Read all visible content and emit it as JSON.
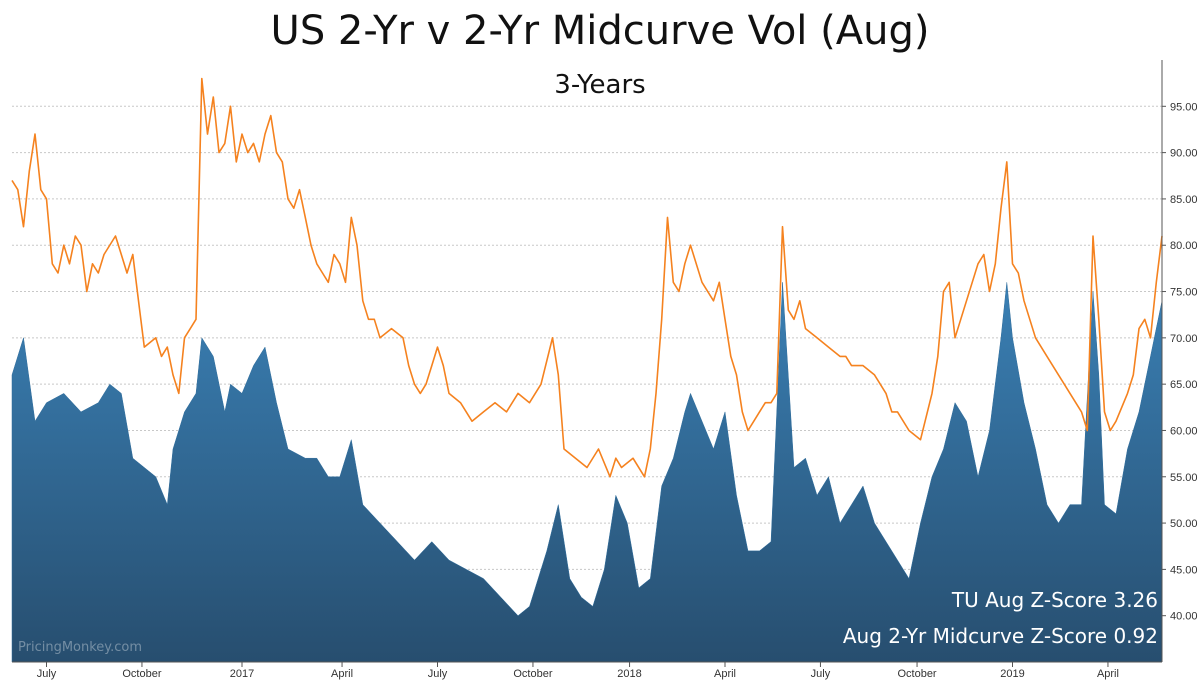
{
  "chart_data": {
    "type": "area",
    "title": "US 2-Yr v 2-Yr Midcurve Vol (Aug)",
    "subtitle": "3-Years",
    "x_tick_labels": [
      "July",
      "October",
      "2017",
      "April",
      "July",
      "October",
      "2018",
      "April",
      "July",
      "October",
      "2019",
      "April"
    ],
    "y_tick_labels": [
      "40.00",
      "45.00",
      "50.00",
      "55.00",
      "60.00",
      "65.00",
      "70.00",
      "75.00",
      "80.00",
      "85.00",
      "90.00",
      "95.00"
    ],
    "ylim": [
      35,
      100
    ],
    "grid": true,
    "y_axis_side": "right",
    "x_ticks_t": [
      0.03,
      0.113,
      0.2,
      0.287,
      0.37,
      0.453,
      0.537,
      0.62,
      0.703,
      0.787,
      0.87,
      0.953
    ],
    "series": [
      {
        "kind": "area",
        "color": "#2f6d9c",
        "points": [
          [
            0,
            66
          ],
          [
            0.01,
            70
          ],
          [
            0.02,
            61
          ],
          [
            0.03,
            63
          ],
          [
            0.045,
            64
          ],
          [
            0.06,
            62
          ],
          [
            0.075,
            63
          ],
          [
            0.085,
            65
          ],
          [
            0.095,
            64
          ],
          [
            0.105,
            57
          ],
          [
            0.115,
            56
          ],
          [
            0.125,
            55
          ],
          [
            0.135,
            52
          ],
          [
            0.14,
            58
          ],
          [
            0.15,
            62
          ],
          [
            0.16,
            64
          ],
          [
            0.165,
            70
          ],
          [
            0.175,
            68
          ],
          [
            0.185,
            62
          ],
          [
            0.19,
            65
          ],
          [
            0.2,
            64
          ],
          [
            0.21,
            67
          ],
          [
            0.22,
            69
          ],
          [
            0.23,
            63
          ],
          [
            0.24,
            58
          ],
          [
            0.255,
            57
          ],
          [
            0.265,
            57
          ],
          [
            0.275,
            55
          ],
          [
            0.285,
            55
          ],
          [
            0.295,
            59
          ],
          [
            0.305,
            52
          ],
          [
            0.32,
            50
          ],
          [
            0.335,
            48
          ],
          [
            0.35,
            46
          ],
          [
            0.365,
            48
          ],
          [
            0.38,
            46
          ],
          [
            0.395,
            45
          ],
          [
            0.41,
            44
          ],
          [
            0.425,
            42
          ],
          [
            0.44,
            40
          ],
          [
            0.45,
            41
          ],
          [
            0.465,
            47
          ],
          [
            0.475,
            52
          ],
          [
            0.485,
            44
          ],
          [
            0.495,
            42
          ],
          [
            0.505,
            41
          ],
          [
            0.515,
            45
          ],
          [
            0.525,
            53
          ],
          [
            0.535,
            50
          ],
          [
            0.545,
            43
          ],
          [
            0.555,
            44
          ],
          [
            0.565,
            54
          ],
          [
            0.575,
            57
          ],
          [
            0.585,
            62
          ],
          [
            0.59,
            64
          ],
          [
            0.6,
            61
          ],
          [
            0.61,
            58
          ],
          [
            0.62,
            62
          ],
          [
            0.63,
            53
          ],
          [
            0.64,
            47
          ],
          [
            0.65,
            47
          ],
          [
            0.66,
            48
          ],
          [
            0.67,
            76
          ],
          [
            0.68,
            56
          ],
          [
            0.69,
            57
          ],
          [
            0.7,
            53
          ],
          [
            0.71,
            55
          ],
          [
            0.72,
            50
          ],
          [
            0.73,
            52
          ],
          [
            0.74,
            54
          ],
          [
            0.75,
            50
          ],
          [
            0.76,
            48
          ],
          [
            0.77,
            46
          ],
          [
            0.78,
            44
          ],
          [
            0.79,
            50
          ],
          [
            0.8,
            55
          ],
          [
            0.81,
            58
          ],
          [
            0.82,
            63
          ],
          [
            0.83,
            61
          ],
          [
            0.84,
            55
          ],
          [
            0.85,
            60
          ],
          [
            0.86,
            70
          ],
          [
            0.865,
            76
          ],
          [
            0.87,
            70
          ],
          [
            0.88,
            63
          ],
          [
            0.89,
            58
          ],
          [
            0.9,
            52
          ],
          [
            0.91,
            50
          ],
          [
            0.92,
            52
          ],
          [
            0.93,
            52
          ],
          [
            0.94,
            75
          ],
          [
            0.945,
            66
          ],
          [
            0.95,
            52
          ],
          [
            0.96,
            51
          ],
          [
            0.97,
            58
          ],
          [
            0.98,
            62
          ],
          [
            0.99,
            68
          ],
          [
            1.0,
            74
          ]
        ]
      },
      {
        "kind": "line",
        "color": "#f5821f",
        "points": [
          [
            0,
            87
          ],
          [
            0.005,
            86
          ],
          [
            0.01,
            82
          ],
          [
            0.015,
            88
          ],
          [
            0.02,
            92
          ],
          [
            0.025,
            86
          ],
          [
            0.03,
            85
          ],
          [
            0.035,
            78
          ],
          [
            0.04,
            77
          ],
          [
            0.045,
            80
          ],
          [
            0.05,
            78
          ],
          [
            0.055,
            81
          ],
          [
            0.06,
            80
          ],
          [
            0.065,
            75
          ],
          [
            0.07,
            78
          ],
          [
            0.075,
            77
          ],
          [
            0.08,
            79
          ],
          [
            0.09,
            81
          ],
          [
            0.095,
            79
          ],
          [
            0.1,
            77
          ],
          [
            0.105,
            79
          ],
          [
            0.11,
            74
          ],
          [
            0.115,
            69
          ],
          [
            0.125,
            70
          ],
          [
            0.13,
            68
          ],
          [
            0.135,
            69
          ],
          [
            0.14,
            66
          ],
          [
            0.145,
            64
          ],
          [
            0.15,
            70
          ],
          [
            0.155,
            71
          ],
          [
            0.16,
            72
          ],
          [
            0.165,
            98
          ],
          [
            0.17,
            92
          ],
          [
            0.175,
            96
          ],
          [
            0.18,
            90
          ],
          [
            0.185,
            91
          ],
          [
            0.19,
            95
          ],
          [
            0.195,
            89
          ],
          [
            0.2,
            92
          ],
          [
            0.205,
            90
          ],
          [
            0.21,
            91
          ],
          [
            0.215,
            89
          ],
          [
            0.22,
            92
          ],
          [
            0.225,
            94
          ],
          [
            0.23,
            90
          ],
          [
            0.235,
            89
          ],
          [
            0.24,
            85
          ],
          [
            0.245,
            84
          ],
          [
            0.25,
            86
          ],
          [
            0.255,
            83
          ],
          [
            0.26,
            80
          ],
          [
            0.265,
            78
          ],
          [
            0.27,
            77
          ],
          [
            0.275,
            76
          ],
          [
            0.28,
            79
          ],
          [
            0.285,
            78
          ],
          [
            0.29,
            76
          ],
          [
            0.295,
            83
          ],
          [
            0.3,
            80
          ],
          [
            0.305,
            74
          ],
          [
            0.31,
            72
          ],
          [
            0.315,
            72
          ],
          [
            0.32,
            70
          ],
          [
            0.33,
            71
          ],
          [
            0.34,
            70
          ],
          [
            0.345,
            67
          ],
          [
            0.35,
            65
          ],
          [
            0.355,
            64
          ],
          [
            0.36,
            65
          ],
          [
            0.365,
            67
          ],
          [
            0.37,
            69
          ],
          [
            0.375,
            67
          ],
          [
            0.38,
            64
          ],
          [
            0.39,
            63
          ],
          [
            0.4,
            61
          ],
          [
            0.41,
            62
          ],
          [
            0.42,
            63
          ],
          [
            0.43,
            62
          ],
          [
            0.44,
            64
          ],
          [
            0.45,
            63
          ],
          [
            0.46,
            65
          ],
          [
            0.47,
            70
          ],
          [
            0.475,
            66
          ],
          [
            0.48,
            58
          ],
          [
            0.49,
            57
          ],
          [
            0.5,
            56
          ],
          [
            0.51,
            58
          ],
          [
            0.52,
            55
          ],
          [
            0.525,
            57
          ],
          [
            0.53,
            56
          ],
          [
            0.54,
            57
          ],
          [
            0.55,
            55
          ],
          [
            0.555,
            58
          ],
          [
            0.56,
            64
          ],
          [
            0.565,
            72
          ],
          [
            0.57,
            83
          ],
          [
            0.575,
            76
          ],
          [
            0.58,
            75
          ],
          [
            0.585,
            78
          ],
          [
            0.59,
            80
          ],
          [
            0.6,
            76
          ],
          [
            0.61,
            74
          ],
          [
            0.615,
            76
          ],
          [
            0.62,
            72
          ],
          [
            0.625,
            68
          ],
          [
            0.63,
            66
          ],
          [
            0.635,
            62
          ],
          [
            0.64,
            60
          ],
          [
            0.645,
            61
          ],
          [
            0.65,
            62
          ],
          [
            0.655,
            63
          ],
          [
            0.66,
            63
          ],
          [
            0.665,
            64
          ],
          [
            0.67,
            82
          ],
          [
            0.675,
            73
          ],
          [
            0.68,
            72
          ],
          [
            0.685,
            74
          ],
          [
            0.69,
            71
          ],
          [
            0.7,
            70
          ],
          [
            0.71,
            69
          ],
          [
            0.72,
            68
          ],
          [
            0.725,
            68
          ],
          [
            0.73,
            67
          ],
          [
            0.74,
            67
          ],
          [
            0.75,
            66
          ],
          [
            0.76,
            64
          ],
          [
            0.765,
            62
          ],
          [
            0.77,
            62
          ],
          [
            0.78,
            60
          ],
          [
            0.79,
            59
          ],
          [
            0.8,
            64
          ],
          [
            0.805,
            68
          ],
          [
            0.81,
            75
          ],
          [
            0.815,
            76
          ],
          [
            0.82,
            70
          ],
          [
            0.83,
            74
          ],
          [
            0.84,
            78
          ],
          [
            0.845,
            79
          ],
          [
            0.85,
            75
          ],
          [
            0.855,
            78
          ],
          [
            0.86,
            84
          ],
          [
            0.865,
            89
          ],
          [
            0.87,
            78
          ],
          [
            0.875,
            77
          ],
          [
            0.88,
            74
          ],
          [
            0.89,
            70
          ],
          [
            0.9,
            68
          ],
          [
            0.91,
            66
          ],
          [
            0.92,
            64
          ],
          [
            0.93,
            62
          ],
          [
            0.935,
            60
          ],
          [
            0.94,
            81
          ],
          [
            0.945,
            72
          ],
          [
            0.95,
            62
          ],
          [
            0.955,
            60
          ],
          [
            0.96,
            61
          ],
          [
            0.97,
            64
          ],
          [
            0.975,
            66
          ],
          [
            0.98,
            71
          ],
          [
            0.985,
            72
          ],
          [
            0.99,
            70
          ],
          [
            0.995,
            76
          ],
          [
            1.0,
            81
          ]
        ]
      }
    ]
  },
  "annotations": {
    "tu_zscore": "TU Aug Z-Score 3.26",
    "midcurve_zscore": "Aug 2-Yr Midcurve Z-Score 0.92"
  },
  "watermark": "PricingMonkey.com"
}
